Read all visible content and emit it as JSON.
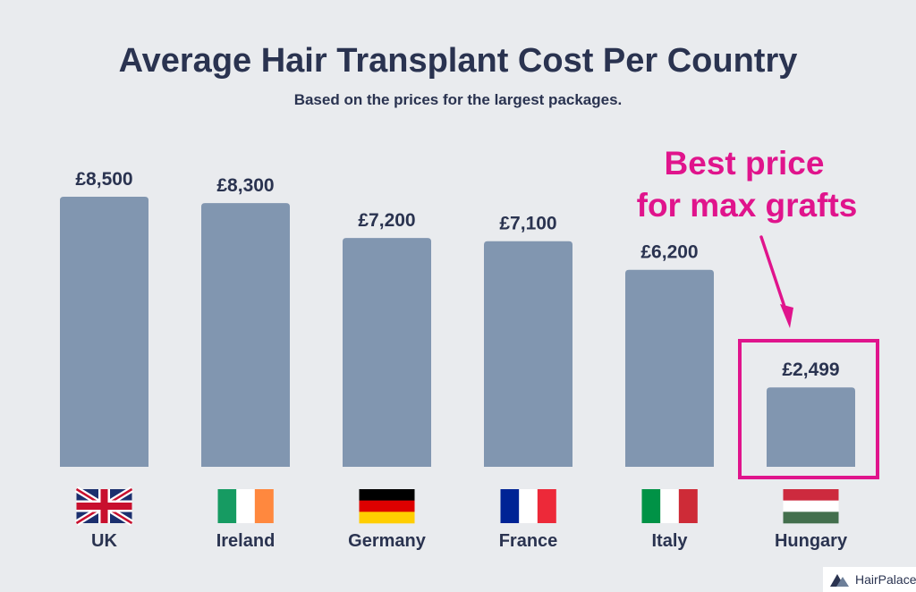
{
  "chart_data": {
    "type": "bar",
    "title": "Average Hair Transplant Cost Per Country",
    "subtitle": "Based on the prices for the largest packages.",
    "categories": [
      "UK",
      "Ireland",
      "Germany",
      "France",
      "Italy",
      "Hungary"
    ],
    "values": [
      8500,
      8300,
      7200,
      7100,
      6200,
      2499
    ],
    "value_labels": [
      "£8,500",
      "£8,300",
      "£7,200",
      "£7,100",
      "£6,200",
      "£2,499"
    ],
    "flags": [
      "uk-flag",
      "ireland-flag",
      "germany-flag",
      "france-flag",
      "italy-flag",
      "hungary-flag"
    ],
    "bar_color": "#8196b0",
    "xlabel": "",
    "ylabel": "",
    "grid": false,
    "annotation": {
      "lines": [
        "Best price",
        "for max grafts"
      ],
      "color": "#e0148c",
      "highlight_category": "Hungary"
    }
  },
  "brand": {
    "name": "HairPalace",
    "icon": "hairpalace-logo-icon"
  }
}
